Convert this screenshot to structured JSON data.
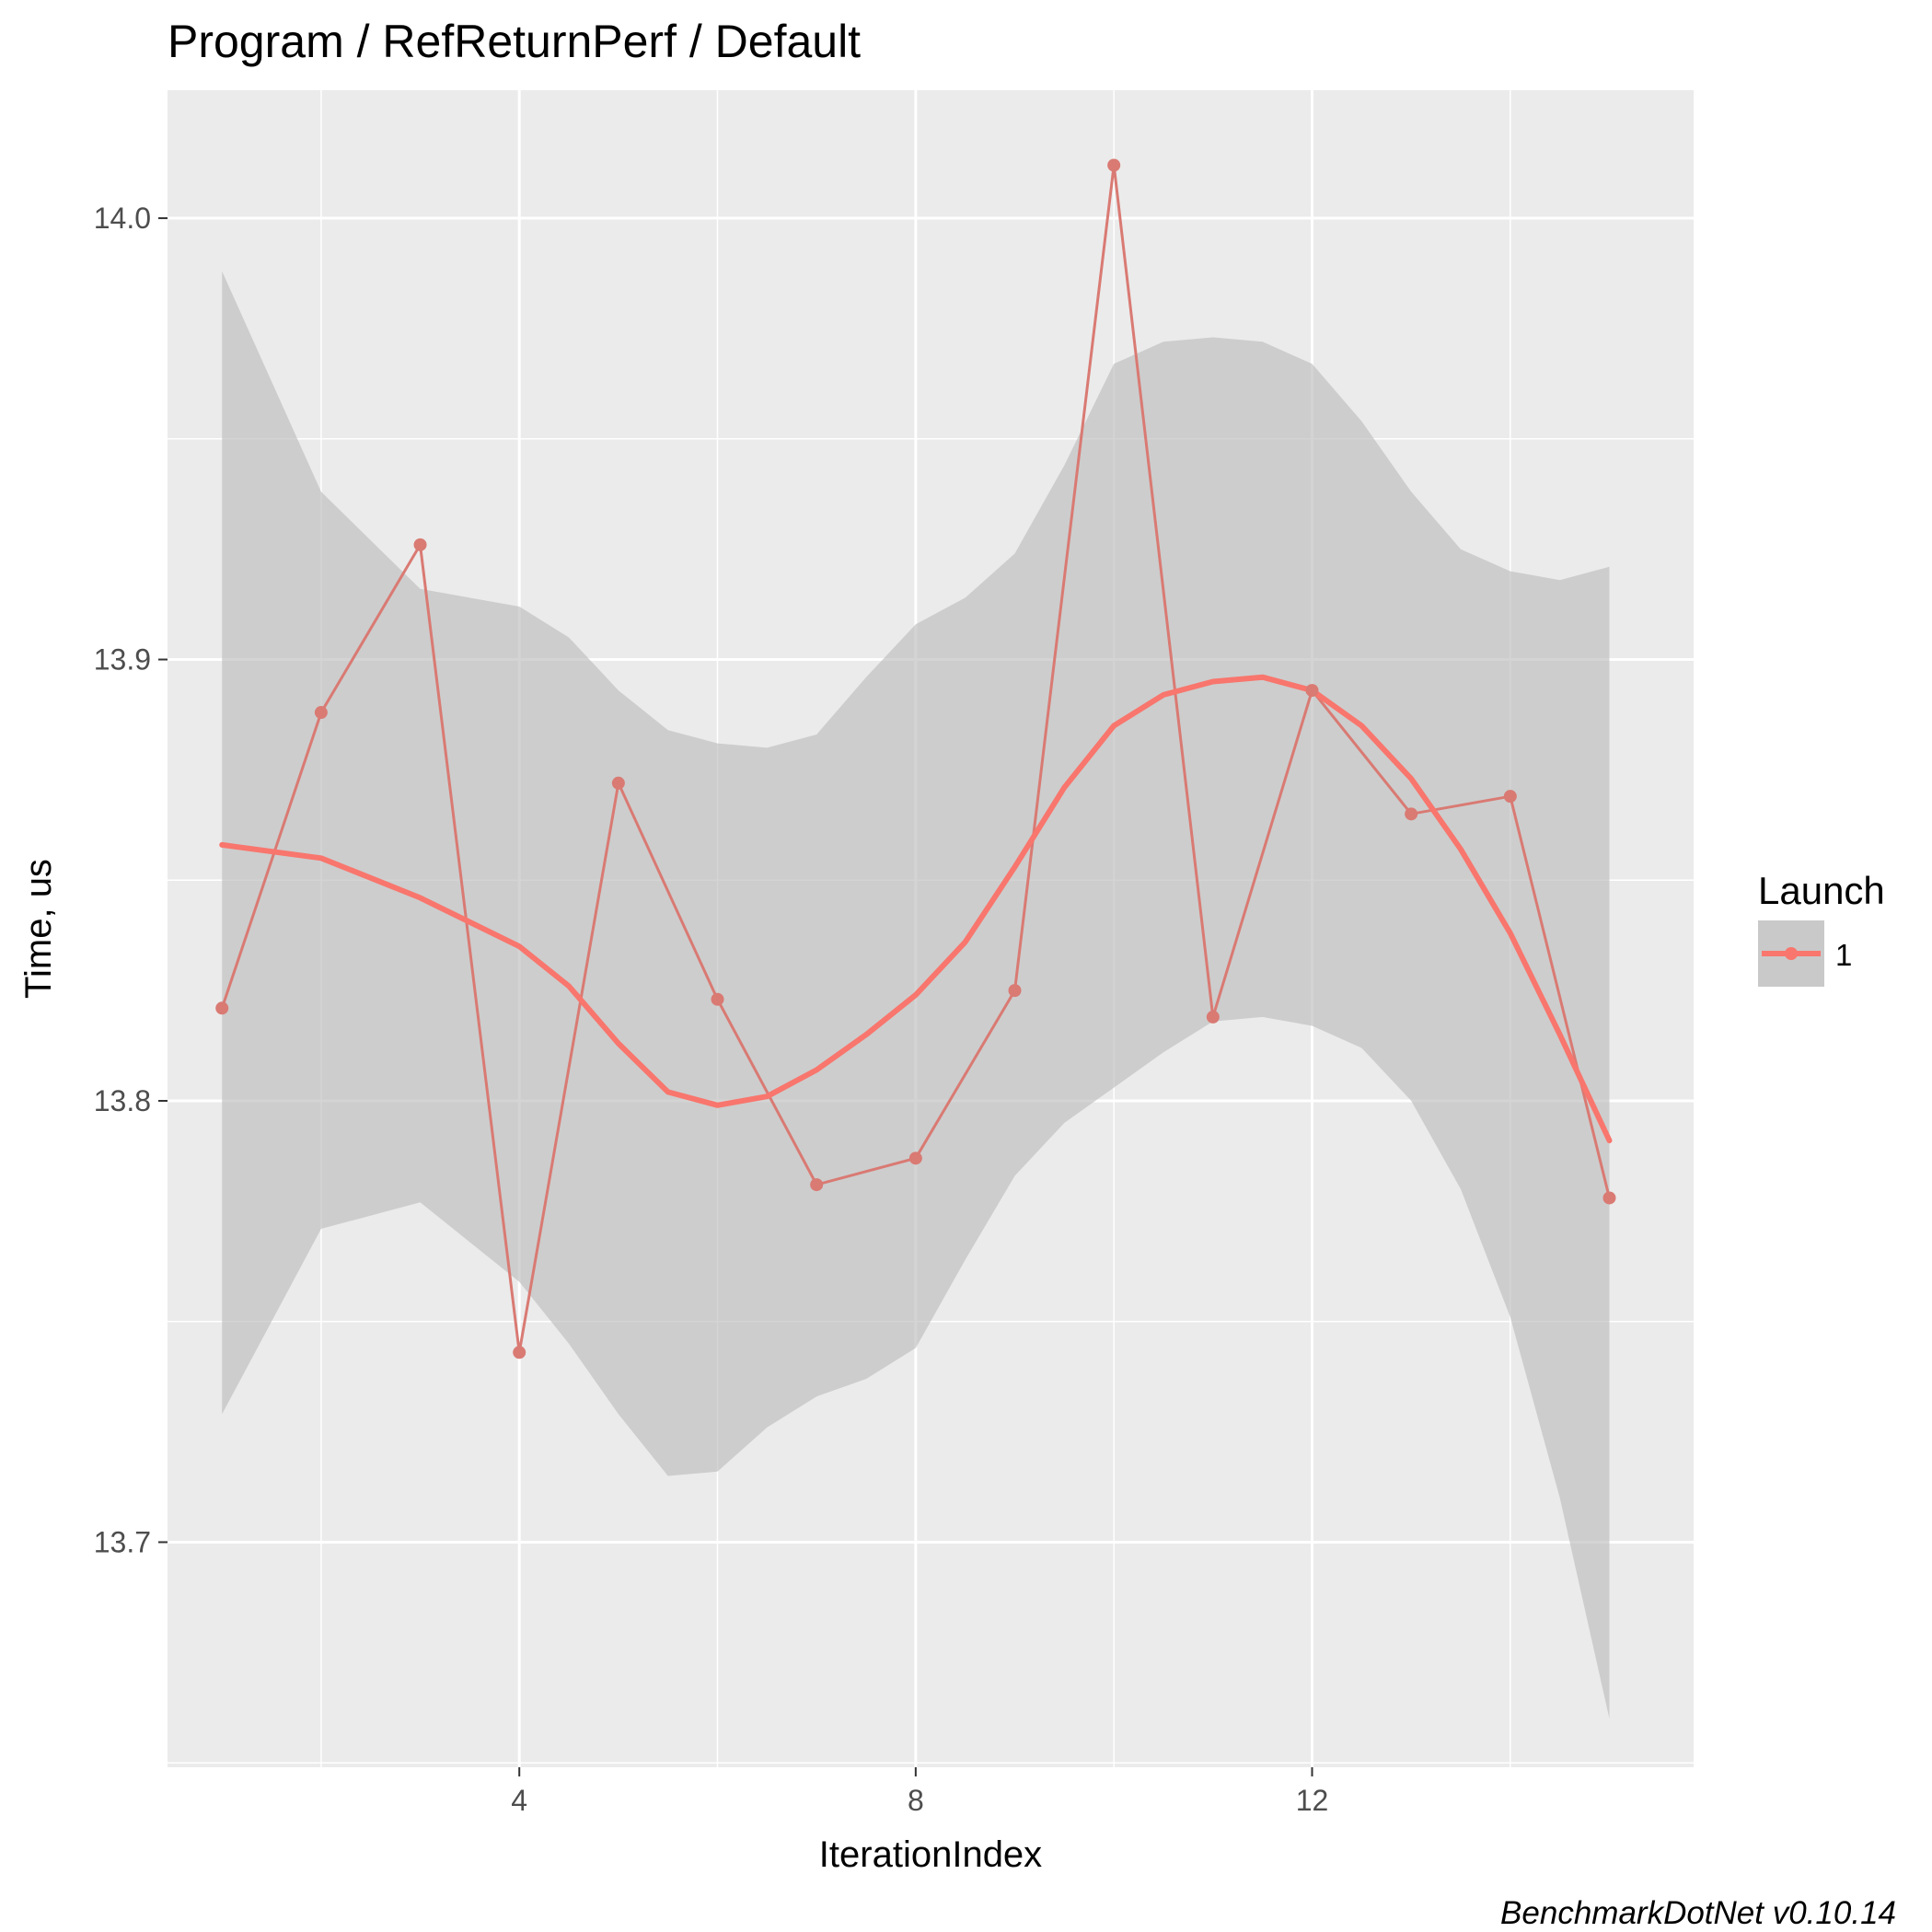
{
  "chart_data": {
    "type": "line",
    "title": "Program / RefReturnPerf / Default",
    "xlabel": "IterationIndex",
    "ylabel": "Time, us",
    "caption": "BenchmarkDotNet v0.10.14",
    "xlim": [
      0.45,
      15.85
    ],
    "ylim": [
      13.649,
      14.029
    ],
    "x_ticks": [
      4,
      8,
      12
    ],
    "x_minor_ticks": [
      2,
      6,
      10,
      14
    ],
    "y_ticks": [
      13.7,
      13.8,
      13.9,
      14.0
    ],
    "y_tick_labels": [
      "13.7",
      "13.8",
      "13.9",
      "14.0"
    ],
    "y_minor_ticks": [
      13.65,
      13.75,
      13.85,
      13.95
    ],
    "grid": true,
    "legend": {
      "title": "Launch",
      "position": "right",
      "entries": [
        "1"
      ]
    },
    "colors": {
      "series": "#f8766d",
      "series_thin": "#d97a73",
      "ribbon": "#bdbdbd",
      "panel": "#ebebeb",
      "grid": "#ffffff"
    },
    "series": [
      {
        "name": "1",
        "x": [
          1,
          2,
          3,
          4,
          5,
          6,
          7,
          8,
          9,
          10,
          11,
          12,
          13,
          14,
          15
        ],
        "y": [
          13.821,
          13.888,
          13.926,
          13.743,
          13.872,
          13.823,
          13.781,
          13.787,
          13.825,
          14.012,
          13.819,
          13.893,
          13.865,
          13.869,
          13.778
        ]
      }
    ],
    "smooth": {
      "x": [
        1,
        2,
        3,
        4,
        4.5,
        5,
        5.5,
        6,
        6.5,
        7,
        7.5,
        8,
        8.5,
        9,
        9.5,
        10,
        10.5,
        11,
        11.5,
        12,
        12.5,
        13,
        13.5,
        14,
        14.5,
        15
      ],
      "y": [
        13.858,
        13.855,
        13.846,
        13.835,
        13.826,
        13.813,
        13.802,
        13.799,
        13.801,
        13.807,
        13.815,
        13.824,
        13.836,
        13.853,
        13.871,
        13.885,
        13.892,
        13.895,
        13.896,
        13.893,
        13.885,
        13.873,
        13.857,
        13.838,
        13.815,
        13.791
      ],
      "lower": [
        13.729,
        13.771,
        13.777,
        13.759,
        13.745,
        13.729,
        13.715,
        13.716,
        13.726,
        13.733,
        13.737,
        13.744,
        13.764,
        13.783,
        13.795,
        13.803,
        13.811,
        13.818,
        13.819,
        13.817,
        13.812,
        13.8,
        13.78,
        13.751,
        13.71,
        13.66
      ],
      "upper": [
        13.988,
        13.938,
        13.916,
        13.912,
        13.905,
        13.893,
        13.884,
        13.881,
        13.88,
        13.883,
        13.896,
        13.908,
        13.914,
        13.924,
        13.944,
        13.967,
        13.972,
        13.973,
        13.972,
        13.967,
        13.954,
        13.938,
        13.925,
        13.92,
        13.918,
        13.921
      ]
    }
  }
}
